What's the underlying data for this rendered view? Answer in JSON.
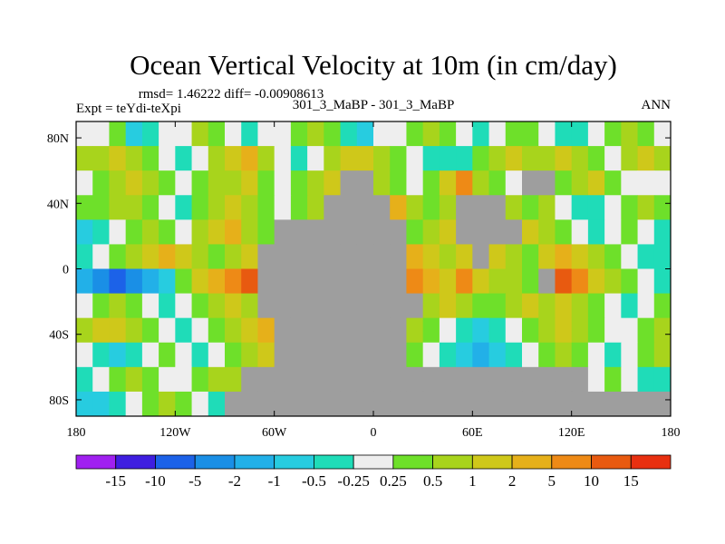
{
  "chart_data": {
    "type": "heatmap",
    "title": "Ocean Vertical Velocity at 10m (in cm/day)",
    "stats": "rmsd= 1.46222 diff= -0.00908613",
    "center_label": "301_3_MaBP - 301_3_MaBP",
    "left_label": "Expt = teYdi-teXpi",
    "right_label": "ANN",
    "x_ticks": [
      "180",
      "120W",
      "60W",
      "0",
      "60E",
      "120E",
      "180"
    ],
    "x_tick_values": [
      -180,
      -120,
      -60,
      0,
      60,
      120,
      180
    ],
    "y_ticks": [
      "80N",
      "40N",
      "0",
      "40S",
      "80S"
    ],
    "y_tick_values": [
      80,
      40,
      0,
      -40,
      -80
    ],
    "xlim": [
      -180,
      180
    ],
    "ylim": [
      -90,
      90
    ],
    "colorbar": {
      "labels": [
        "-15",
        "-10",
        "-5",
        "-2",
        "-1",
        "-0.5",
        "-0.25",
        "0.25",
        "0.5",
        "1",
        "2",
        "5",
        "10",
        "15"
      ],
      "colors": [
        "#a020f0",
        "#3f1ee0",
        "#1c62e8",
        "#1a8fe6",
        "#22b0e8",
        "#27cce0",
        "#1fdcb8",
        "#eeeeee",
        "#6ee02a",
        "#a8d41c",
        "#cfc81a",
        "#e6b01a",
        "#ee8a16",
        "#e85a10",
        "#e83010"
      ]
    },
    "land_color": "#9e9e9e",
    "gridcell_field": [
      [
        7,
        7,
        8,
        5,
        6,
        7,
        7,
        9,
        8,
        7,
        6,
        7,
        7,
        8,
        9,
        8,
        6,
        5,
        7,
        7,
        8,
        9,
        8,
        7,
        6,
        7,
        8,
        8,
        7,
        6,
        6,
        7,
        8,
        9,
        8,
        7
      ],
      [
        9,
        9,
        10,
        9,
        8,
        7,
        6,
        7,
        9,
        10,
        11,
        9,
        7,
        6,
        7,
        9,
        10,
        10,
        9,
        8,
        7,
        6,
        6,
        6,
        8,
        9,
        10,
        9,
        9,
        10,
        9,
        8,
        7,
        9,
        10,
        9
      ],
      [
        7,
        8,
        9,
        10,
        9,
        8,
        7,
        8,
        9,
        9,
        10,
        8,
        7,
        8,
        9,
        10,
        -1,
        -1,
        9,
        8,
        7,
        8,
        10,
        12,
        9,
        8,
        7,
        -1,
        -1,
        8,
        9,
        10,
        8,
        7,
        7,
        7
      ],
      [
        8,
        8,
        9,
        9,
        8,
        7,
        6,
        8,
        9,
        10,
        9,
        8,
        7,
        8,
        9,
        -1,
        -1,
        -1,
        -1,
        11,
        9,
        8,
        9,
        -1,
        -1,
        -1,
        9,
        8,
        9,
        7,
        6,
        6,
        7,
        8,
        9,
        8
      ],
      [
        5,
        6,
        7,
        8,
        9,
        8,
        7,
        9,
        10,
        11,
        9,
        8,
        -1,
        -1,
        -1,
        -1,
        -1,
        -1,
        -1,
        -1,
        8,
        9,
        10,
        -1,
        -1,
        -1,
        -1,
        10,
        9,
        8,
        7,
        6,
        7,
        8,
        7,
        6
      ],
      [
        6,
        7,
        8,
        9,
        10,
        11,
        10,
        9,
        8,
        9,
        10,
        -1,
        -1,
        -1,
        -1,
        -1,
        -1,
        -1,
        -1,
        -1,
        11,
        10,
        9,
        10,
        -1,
        10,
        9,
        8,
        10,
        11,
        10,
        9,
        8,
        7,
        6,
        6
      ],
      [
        4,
        3,
        2,
        3,
        4,
        5,
        8,
        10,
        11,
        12,
        13,
        -1,
        -1,
        -1,
        -1,
        -1,
        -1,
        -1,
        -1,
        -1,
        12,
        11,
        10,
        12,
        10,
        9,
        9,
        8,
        -1,
        13,
        12,
        10,
        9,
        8,
        7,
        6
      ],
      [
        7,
        8,
        9,
        8,
        7,
        6,
        7,
        8,
        9,
        10,
        9,
        -1,
        -1,
        -1,
        -1,
        -1,
        -1,
        -1,
        -1,
        -1,
        -1,
        9,
        10,
        9,
        8,
        8,
        9,
        10,
        9,
        10,
        9,
        8,
        7,
        6,
        7,
        8
      ],
      [
        9,
        10,
        10,
        9,
        8,
        7,
        6,
        7,
        8,
        9,
        10,
        11,
        -1,
        -1,
        -1,
        -1,
        -1,
        -1,
        -1,
        -1,
        9,
        8,
        7,
        6,
        5,
        6,
        7,
        8,
        9,
        10,
        9,
        8,
        7,
        7,
        8,
        9
      ],
      [
        7,
        6,
        5,
        6,
        7,
        8,
        7,
        6,
        7,
        8,
        9,
        10,
        -1,
        -1,
        -1,
        -1,
        -1,
        -1,
        -1,
        -1,
        8,
        7,
        6,
        5,
        4,
        5,
        6,
        7,
        8,
        9,
        8,
        7,
        6,
        7,
        8,
        9
      ],
      [
        6,
        7,
        8,
        9,
        8,
        7,
        7,
        8,
        9,
        9,
        -1,
        -1,
        -1,
        -1,
        -1,
        -1,
        -1,
        -1,
        -1,
        -1,
        -1,
        -1,
        -1,
        -1,
        -1,
        -1,
        -1,
        -1,
        -1,
        -1,
        -1,
        7,
        8,
        7,
        6,
        6
      ],
      [
        5,
        5,
        6,
        7,
        8,
        9,
        8,
        7,
        6,
        -1,
        -1,
        -1,
        -1,
        -1,
        -1,
        -1,
        -1,
        -1,
        -1,
        -1,
        -1,
        -1,
        -1,
        -1,
        -1,
        -1,
        -1,
        -1,
        -1,
        -1,
        -1,
        -1,
        -1,
        -1,
        -1,
        -1
      ]
    ]
  }
}
